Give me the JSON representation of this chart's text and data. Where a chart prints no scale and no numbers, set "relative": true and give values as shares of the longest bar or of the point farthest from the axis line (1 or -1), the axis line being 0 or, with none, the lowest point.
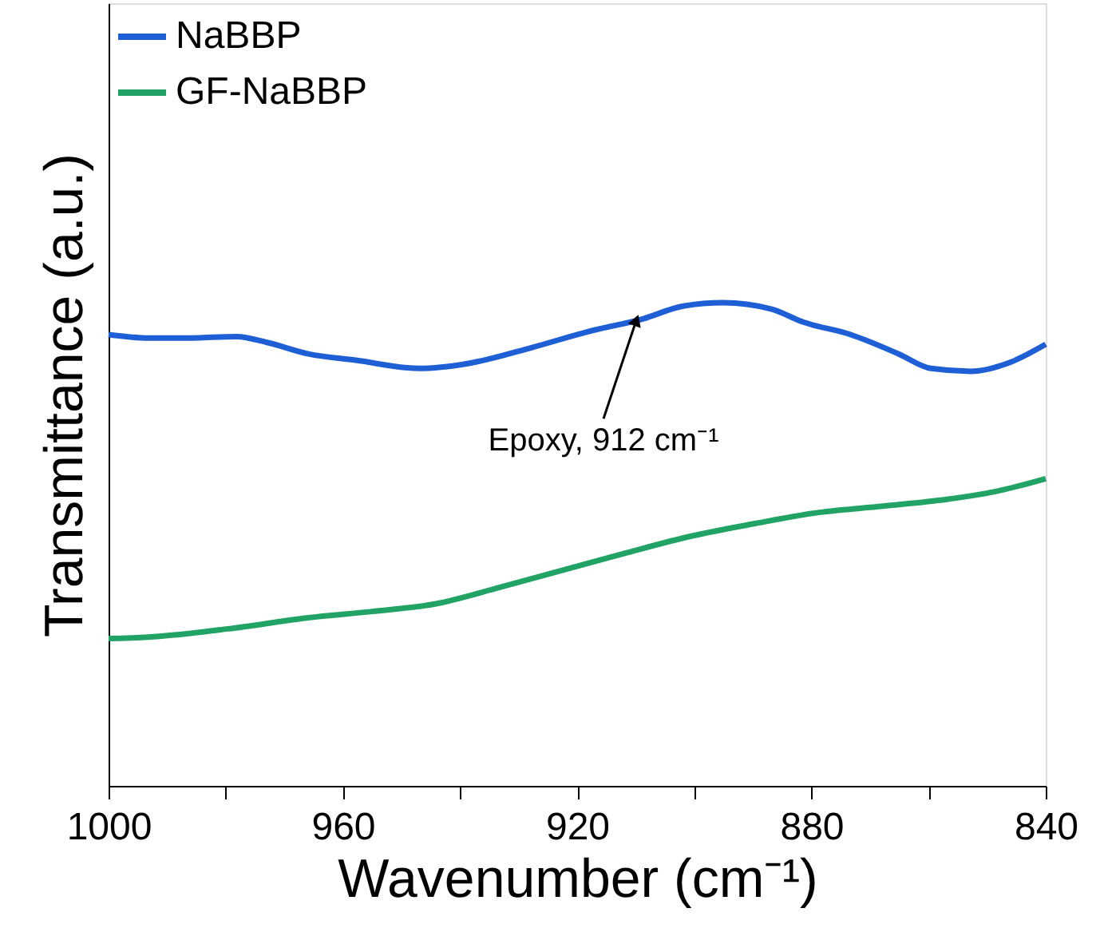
{
  "chart_data": {
    "type": "line",
    "xlabel": "Wavenumber (cm⁻¹)",
    "ylabel": "Transmittance (a.u.)",
    "relative": true,
    "xlim": [
      1000,
      840
    ],
    "xticks": [
      1000,
      {
        "value": 980,
        "label": null
      },
      960,
      {
        "value": 940,
        "label": null
      },
      920,
      {
        "value": 900,
        "label": null
      },
      880,
      {
        "value": 860,
        "label": null
      },
      840
    ],
    "legend": "top left",
    "grid": false,
    "line_style": "solid",
    "marker": "none",
    "annotations": [
      {
        "text": "Epoxy, 912 cm⁻¹",
        "x": 910,
        "y": 0.96
      }
    ],
    "series": [
      {
        "name": "NaBBP",
        "color": "#1f5fd6",
        "x": [
          1000,
          993.2,
          986.4,
          978.2,
          972.7,
          965.9,
          957.8,
          946.9,
          938.7,
          927.8,
          918.2,
          908.7,
          901.9,
          895.1,
          886.9,
          881.4,
          873.3,
          865.1,
          859.6,
          852.8,
          846.0,
          840
        ],
        "values": [
          0.934,
          0.927,
          0.927,
          0.93,
          0.917,
          0.894,
          0.881,
          0.864,
          0.874,
          0.907,
          0.94,
          0.967,
          0.993,
          1.0,
          0.987,
          0.96,
          0.934,
          0.894,
          0.864,
          0.858,
          0.877,
          0.914
        ]
      },
      {
        "name": "GF-NaBBP",
        "color": "#21a365",
        "x": [
          1000,
          993.2,
          979.6,
          965.9,
          955.0,
          944.1,
          933.2,
          922.3,
          911.4,
          900.5,
          889.6,
          878.7,
          867.8,
          856.9,
          848.7,
          840
        ],
        "values": [
          0.305,
          0.308,
          0.325,
          0.348,
          0.361,
          0.377,
          0.411,
          0.447,
          0.483,
          0.517,
          0.543,
          0.566,
          0.579,
          0.593,
          0.609,
          0.636
        ]
      }
    ]
  }
}
